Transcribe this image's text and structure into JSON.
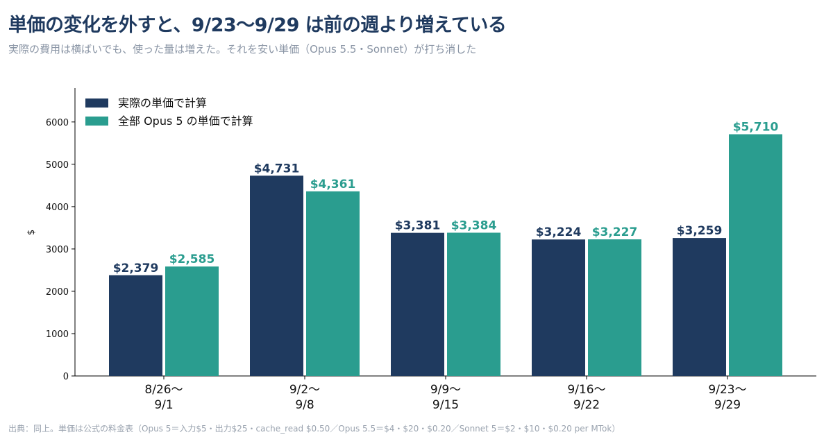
{
  "title": "単価の変化を外すと、9/23〜9/29 は前の週より増えている",
  "subtitle": "実際の費用は横ばいでも、使った量は増えた。それを安い単価（Opus 5.5・Sonnet）が打ち消した",
  "footnote": "出典：同上。単価は公式の料金表（Opus 5＝入力$5・出力$25・cache_read $0.50／Opus 5.5＝$4・$20・$0.20／Sonnet 5＝$2・$10・$0.20 per MTok）",
  "colors": {
    "actual": "#1f3a5f",
    "opus5": "#2a9d8f",
    "axis": "#000000"
  },
  "chart_data": {
    "type": "bar",
    "categories": [
      "8/26〜\n9/1",
      "9/2〜\n9/8",
      "9/9〜\n9/15",
      "9/16〜\n9/22",
      "9/23〜\n9/29"
    ],
    "series": [
      {
        "name": "実際の単価で計算",
        "values": [
          2379,
          4731,
          3381,
          3224,
          3259
        ],
        "labels": [
          "$2,379",
          "$4,731",
          "$3,381",
          "$3,224",
          "$3,259"
        ]
      },
      {
        "name": "全部 Opus 5 の単価で計算",
        "values": [
          2585,
          4361,
          3384,
          3227,
          5710
        ],
        "labels": [
          "$2,585",
          "$4,361",
          "$3,384",
          "$3,227",
          "$5,710"
        ]
      }
    ],
    "ylabel": "$",
    "ylim": [
      0,
      6800
    ],
    "yticks": [
      0,
      1000,
      2000,
      3000,
      4000,
      5000,
      6000
    ],
    "legend": "top-left",
    "grid": false
  }
}
